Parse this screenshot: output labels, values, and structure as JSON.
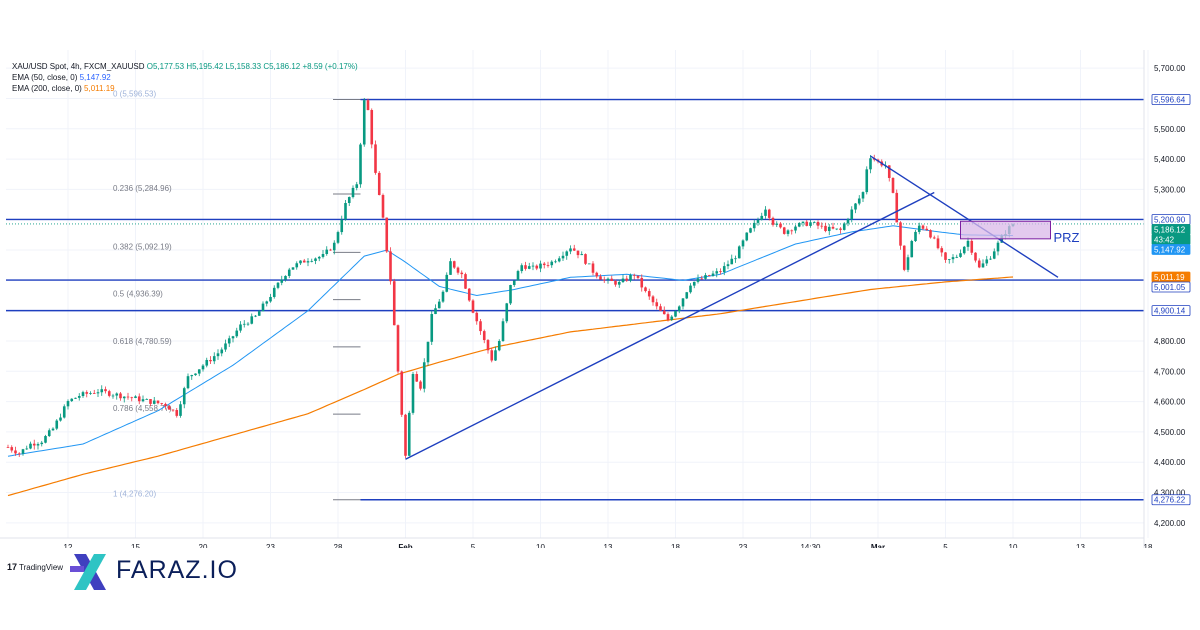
{
  "chart_data": {
    "type": "candlestick",
    "symbol_line": {
      "symbol": "XAU/USD Spot, 4h, FXCM_XAUUSD",
      "open": "O5,177.53",
      "high": "H5,195.42",
      "low": "L5,158.33",
      "close": "C5,186.12",
      "change": "+8.59 (+0.17%)"
    },
    "indicators": [
      {
        "label": "EMA (50, close, 0)",
        "value": "5,147.92",
        "color": "#2196f3"
      },
      {
        "label": "EMA (200, close, 0)",
        "value": "5,011.19",
        "color": "#f57c00"
      }
    ],
    "y_axis": {
      "ylim": [
        4150,
        5760
      ],
      "ticks": [
        4200,
        4300,
        4400,
        4500,
        4600,
        4700,
        4800,
        4900,
        5000,
        5100,
        5200,
        5300,
        5400,
        5500,
        5600,
        5700
      ],
      "tick_labels": [
        "4,200.00",
        "4,300.00",
        "4,400.00",
        "4,500.00",
        "4,600.00",
        "4,700.00",
        "4,800.00",
        "4,900.00",
        "5,000.00",
        "5,100.00",
        "5,200.00",
        "5,300.00",
        "5,400.00",
        "5,500.00",
        "5,600.00",
        "5,700.00"
      ]
    },
    "x_axis": {
      "ticks": [
        {
          "label": "12",
          "bar": 16
        },
        {
          "label": "15",
          "bar": 34
        },
        {
          "label": "20",
          "bar": 52
        },
        {
          "label": "23",
          "bar": 70
        },
        {
          "label": "28",
          "bar": 88
        },
        {
          "label": "Feb",
          "bar": 106
        },
        {
          "label": "5",
          "bar": 124
        },
        {
          "label": "10",
          "bar": 142
        },
        {
          "label": "13",
          "bar": 160
        },
        {
          "label": "18",
          "bar": 178
        },
        {
          "label": "23",
          "bar": 196
        },
        {
          "label": "14:30",
          "bar": 214
        },
        {
          "label": "Mar",
          "bar": 232
        },
        {
          "label": "5",
          "bar": 250
        },
        {
          "label": "10",
          "bar": 268
        },
        {
          "label": "13",
          "bar": 286
        },
        {
          "label": "18",
          "bar": 304
        }
      ]
    },
    "price_anchors": [
      [
        0,
        4450
      ],
      [
        3,
        4430
      ],
      [
        6,
        4460
      ],
      [
        9,
        4470
      ],
      [
        12,
        4510
      ],
      [
        16,
        4600
      ],
      [
        19,
        4620
      ],
      [
        24,
        4635
      ],
      [
        30,
        4620
      ],
      [
        34,
        4610
      ],
      [
        38,
        4600
      ],
      [
        42,
        4590
      ],
      [
        45,
        4560
      ],
      [
        48,
        4680
      ],
      [
        52,
        4720
      ],
      [
        56,
        4760
      ],
      [
        59,
        4800
      ],
      [
        62,
        4850
      ],
      [
        66,
        4880
      ],
      [
        70,
        4950
      ],
      [
        75,
        5040
      ],
      [
        80,
        5070
      ],
      [
        84,
        5080
      ],
      [
        87,
        5120
      ],
      [
        90,
        5250
      ],
      [
        93,
        5320
      ],
      [
        95,
        5590
      ],
      [
        96,
        5560
      ],
      [
        98,
        5350
      ],
      [
        100,
        5200
      ],
      [
        102,
        5000
      ],
      [
        104,
        4700
      ],
      [
        106,
        4420
      ],
      [
        108,
        4700
      ],
      [
        110,
        4650
      ],
      [
        113,
        4880
      ],
      [
        116,
        4960
      ],
      [
        118,
        5060
      ],
      [
        121,
        5020
      ],
      [
        124,
        4900
      ],
      [
        127,
        4800
      ],
      [
        129,
        4740
      ],
      [
        131,
        4800
      ],
      [
        134,
        4980
      ],
      [
        137,
        5050
      ],
      [
        140,
        5040
      ],
      [
        145,
        5060
      ],
      [
        150,
        5110
      ],
      [
        153,
        5080
      ],
      [
        156,
        5030
      ],
      [
        159,
        5000
      ],
      [
        163,
        4990
      ],
      [
        167,
        5020
      ],
      [
        170,
        4960
      ],
      [
        173,
        4910
      ],
      [
        176,
        4870
      ],
      [
        179,
        4920
      ],
      [
        182,
        4990
      ],
      [
        186,
        5010
      ],
      [
        190,
        5030
      ],
      [
        194,
        5080
      ],
      [
        197,
        5150
      ],
      [
        200,
        5200
      ],
      [
        202,
        5240
      ],
      [
        204,
        5190
      ],
      [
        207,
        5160
      ],
      [
        210,
        5180
      ],
      [
        214,
        5190
      ],
      [
        218,
        5170
      ],
      [
        222,
        5165
      ],
      [
        225,
        5230
      ],
      [
        228,
        5290
      ],
      [
        229,
        5370
      ],
      [
        230,
        5410
      ],
      [
        232,
        5390
      ],
      [
        234,
        5380
      ],
      [
        236,
        5280
      ],
      [
        237,
        5200
      ],
      [
        239,
        5030
      ],
      [
        241,
        5130
      ],
      [
        243,
        5180
      ],
      [
        245,
        5170
      ],
      [
        247,
        5130
      ],
      [
        250,
        5060
      ],
      [
        253,
        5080
      ],
      [
        256,
        5130
      ],
      [
        259,
        5040
      ],
      [
        262,
        5080
      ],
      [
        264,
        5120
      ],
      [
        266,
        5160
      ],
      [
        268,
        5186.12
      ]
    ],
    "ema50_anchors": [
      [
        0,
        4420
      ],
      [
        20,
        4460
      ],
      [
        40,
        4570
      ],
      [
        60,
        4720
      ],
      [
        80,
        4900
      ],
      [
        95,
        5080
      ],
      [
        101,
        5100
      ],
      [
        106,
        5060
      ],
      [
        115,
        4980
      ],
      [
        125,
        4950
      ],
      [
        135,
        4970
      ],
      [
        150,
        5010
      ],
      [
        165,
        5020
      ],
      [
        180,
        5000
      ],
      [
        190,
        5020
      ],
      [
        200,
        5070
      ],
      [
        210,
        5120
      ],
      [
        225,
        5160
      ],
      [
        236,
        5180
      ],
      [
        245,
        5165
      ],
      [
        255,
        5150
      ],
      [
        268,
        5147.92
      ]
    ],
    "ema200_anchors": [
      [
        0,
        4290
      ],
      [
        20,
        4360
      ],
      [
        40,
        4420
      ],
      [
        60,
        4490
      ],
      [
        80,
        4560
      ],
      [
        95,
        4640
      ],
      [
        104,
        4690
      ],
      [
        115,
        4730
      ],
      [
        130,
        4780
      ],
      [
        150,
        4830
      ],
      [
        170,
        4860
      ],
      [
        190,
        4890
      ],
      [
        210,
        4930
      ],
      [
        230,
        4970
      ],
      [
        250,
        4995
      ],
      [
        268,
        5011.19
      ]
    ],
    "fibonacci": [
      {
        "label": "0 (5,596.53)",
        "value": 5596.53
      },
      {
        "label": "0.236 (5,284.96)",
        "value": 5284.96
      },
      {
        "label": "0.382 (5,092.19)",
        "value": 5092.19
      },
      {
        "label": "0.5 (4,936.39)",
        "value": 4936.39
      },
      {
        "label": "0.618 (4,780.59)",
        "value": 4780.59
      },
      {
        "label": "0.786 (4,558.77)",
        "value": 4558.77
      },
      {
        "label": "1 (4,276.20)",
        "value": 4276.2
      }
    ],
    "horizontal_levels": [
      {
        "value": 5596.64,
        "label": "5,596.64"
      },
      {
        "value": 5200.9,
        "label": "5,200.90"
      },
      {
        "value": 5001.05,
        "label": "5,001.05"
      },
      {
        "value": 4900.14,
        "label": "4,900.14"
      },
      {
        "value": 4276.22,
        "label": "4,276.22"
      }
    ],
    "trendlines": [
      {
        "name": "rising",
        "points": [
          [
            106,
            4410
          ],
          [
            247,
            5290
          ]
        ]
      },
      {
        "name": "falling",
        "points": [
          [
            230,
            5410
          ],
          [
            280,
            5010
          ]
        ]
      }
    ],
    "prz_zone": {
      "label": "PRZ",
      "from_bar": 254,
      "to_bar": 278,
      "top": 5195,
      "bottom": 5137
    },
    "price_tags": [
      {
        "label": "5,200.90",
        "value": 5200.9,
        "bg": "#ffffff",
        "fg": "#1e3fbf",
        "border": "#1e3fbf"
      },
      {
        "label": "5,186.12",
        "value": 5186.12,
        "bg": "#089981",
        "fg": "#ffffff",
        "border": "#089981"
      },
      {
        "label": "43:42",
        "value": 5168,
        "bg": "#089981",
        "fg": "#ffffff",
        "border": "#089981"
      },
      {
        "label": "5,147.92",
        "value": 5147.92,
        "bg": "#2196f3",
        "fg": "#ffffff",
        "border": "#2196f3"
      },
      {
        "label": "5,011.19",
        "value": 5011.19,
        "bg": "#f57c00",
        "fg": "#ffffff",
        "border": "#f57c00"
      },
      {
        "label": "5,001.05",
        "value": 5001.05,
        "bg": "#ffffff",
        "fg": "#1e3fbf",
        "border": "#1e3fbf"
      },
      {
        "label": "4,900.14",
        "value": 4900.14,
        "bg": "#ffffff",
        "fg": "#1e3fbf",
        "border": "#1e3fbf"
      },
      {
        "label": "5,596.64",
        "value": 5596.64,
        "bg": "#ffffff",
        "fg": "#1e3fbf",
        "border": "#1e3fbf"
      },
      {
        "label": "4,276.22",
        "value": 4276.22,
        "bg": "#ffffff",
        "fg": "#1e3fbf",
        "border": "#1e3fbf"
      }
    ],
    "colors": {
      "up": "#089981",
      "down": "#f23645",
      "level": "#1e3fbf",
      "fib": "#787b86",
      "prz_fill": "#d9b8e8",
      "prz_border": "#7b1fa2"
    },
    "grid": true
  },
  "branding": {
    "tradingview": "TradingView",
    "faraz": "FARAZ.IO"
  }
}
